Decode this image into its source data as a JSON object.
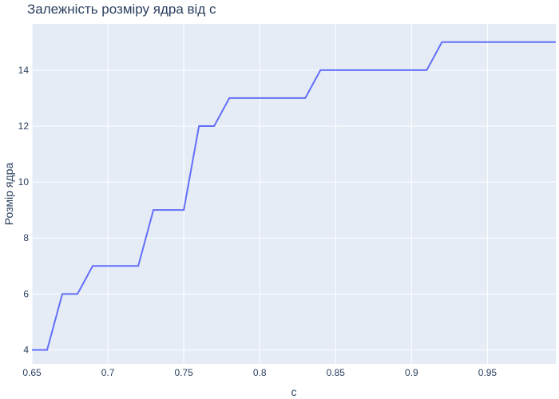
{
  "chart_data": {
    "type": "line",
    "title": "Залежність розміру ядра від c",
    "xlabel": "c",
    "ylabel": "Розмір ядра",
    "xlim": [
      0.65,
      0.995
    ],
    "ylim": [
      3.5,
      15.65
    ],
    "xticks": [
      0.65,
      0.7,
      0.75,
      0.8,
      0.85,
      0.9,
      0.95
    ],
    "xtick_labels": [
      "0.65",
      "0.7",
      "0.75",
      "0.8",
      "0.85",
      "0.9",
      "0.95"
    ],
    "yticks": [
      4,
      6,
      8,
      10,
      12,
      14
    ],
    "ytick_labels": [
      "4",
      "6",
      "8",
      "10",
      "12",
      "14"
    ],
    "grid": true,
    "colors": {
      "plot_bg": "#e5ecf6",
      "grid": "#ffffff",
      "line": "#636efa",
      "text": "#2a3f5f"
    },
    "series": [
      {
        "x": [
          0.65,
          0.66,
          0.67,
          0.68,
          0.69,
          0.7,
          0.71,
          0.72,
          0.73,
          0.74,
          0.75,
          0.76,
          0.77,
          0.78,
          0.79,
          0.8,
          0.81,
          0.82,
          0.83,
          0.84,
          0.85,
          0.86,
          0.87,
          0.88,
          0.89,
          0.9,
          0.91,
          0.92,
          0.93,
          0.94,
          0.95,
          0.96,
          0.97,
          0.98,
          0.99
        ],
        "y": [
          4,
          4,
          6,
          6,
          7,
          7,
          7,
          7,
          9,
          9,
          9,
          12,
          12,
          13,
          13,
          13,
          13,
          13,
          13,
          14,
          14,
          14,
          14,
          14,
          14,
          14,
          14,
          15,
          15,
          15,
          15,
          15,
          15,
          15,
          15
        ]
      }
    ]
  }
}
